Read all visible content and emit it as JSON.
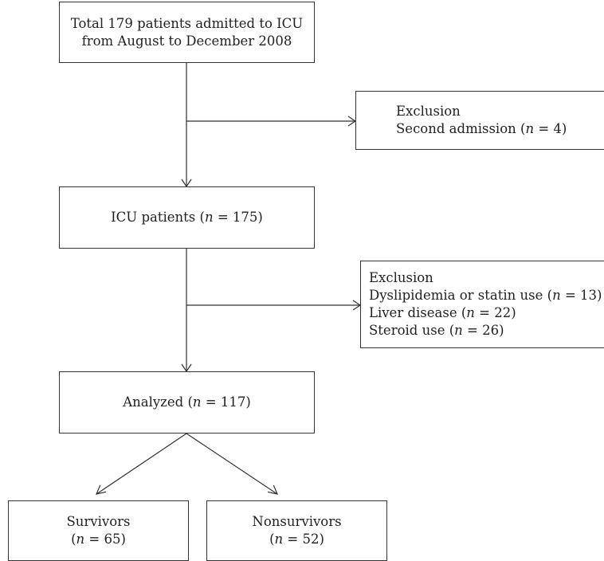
{
  "nodes": {
    "total": {
      "lines": [
        "Total 179 patients admitted to ICU",
        "from August to December 2008"
      ]
    },
    "exclusion1": {
      "title": "Exclusion",
      "items": [
        {
          "pre": "Second admission (",
          "var": "n",
          "post": " = 4)"
        }
      ]
    },
    "icu": {
      "pre": "ICU patients (",
      "var": "n",
      "post": " = 175)"
    },
    "exclusion2": {
      "title": "Exclusion",
      "items": [
        {
          "pre": "Dyslipidemia or statin use (",
          "var": "n",
          "post": " = 13)"
        },
        {
          "pre": "Liver disease (",
          "var": "n",
          "post": " = 22)"
        },
        {
          "pre": "Steroid use (",
          "var": "n",
          "post": " = 26)"
        }
      ]
    },
    "analyzed": {
      "pre": "Analyzed (",
      "var": "n",
      "post": " = 117)"
    },
    "survivors": {
      "title": "Survivors",
      "pre": "(",
      "var": "n",
      "post": " = 65)"
    },
    "nonsurvivors": {
      "title": "Nonsurvivors",
      "pre": "(",
      "var": "n",
      "post": " = 52)"
    }
  },
  "colors": {
    "stroke": "#333333",
    "text": "#222222",
    "background": "#ffffff"
  }
}
